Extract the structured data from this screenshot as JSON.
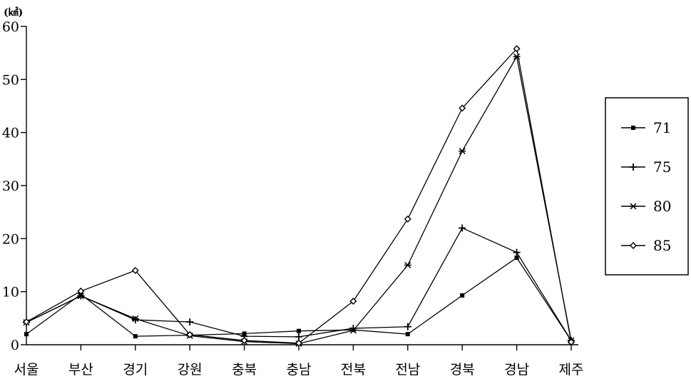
{
  "chart_data": {
    "type": "line",
    "ylabel": "(㎢)",
    "ylim": [
      0,
      60
    ],
    "yticks": [
      "0",
      "10",
      "20",
      "30",
      "40",
      "50",
      "60"
    ],
    "categories": [
      "서울",
      "부산",
      "경기",
      "강원",
      "충북",
      "충남",
      "전북",
      "전남",
      "경북",
      "경남",
      "제주"
    ],
    "legend_position": "right",
    "grid": false,
    "series": [
      {
        "name": "71",
        "marker": "square",
        "values": [
          2,
          9.5,
          1.6,
          1.8,
          2.1,
          2.6,
          2.8,
          2.0,
          9.3,
          16.4,
          0.8
        ]
      },
      {
        "name": "75",
        "marker": "plus",
        "values": [
          4.2,
          9.2,
          4.7,
          4.3,
          1.6,
          1.5,
          3.1,
          3.4,
          22,
          17.4,
          0.8
        ]
      },
      {
        "name": "80",
        "marker": "star",
        "values": [
          4.2,
          9.2,
          4.9,
          1.7,
          0.6,
          0.2,
          2.7,
          15,
          36.5,
          54.3,
          0.8
        ]
      },
      {
        "name": "85",
        "marker": "diamond",
        "values": [
          4.3,
          10.1,
          14,
          1.9,
          0.8,
          0.3,
          8.2,
          23.7,
          44.6,
          55.8,
          0.5
        ]
      }
    ]
  }
}
